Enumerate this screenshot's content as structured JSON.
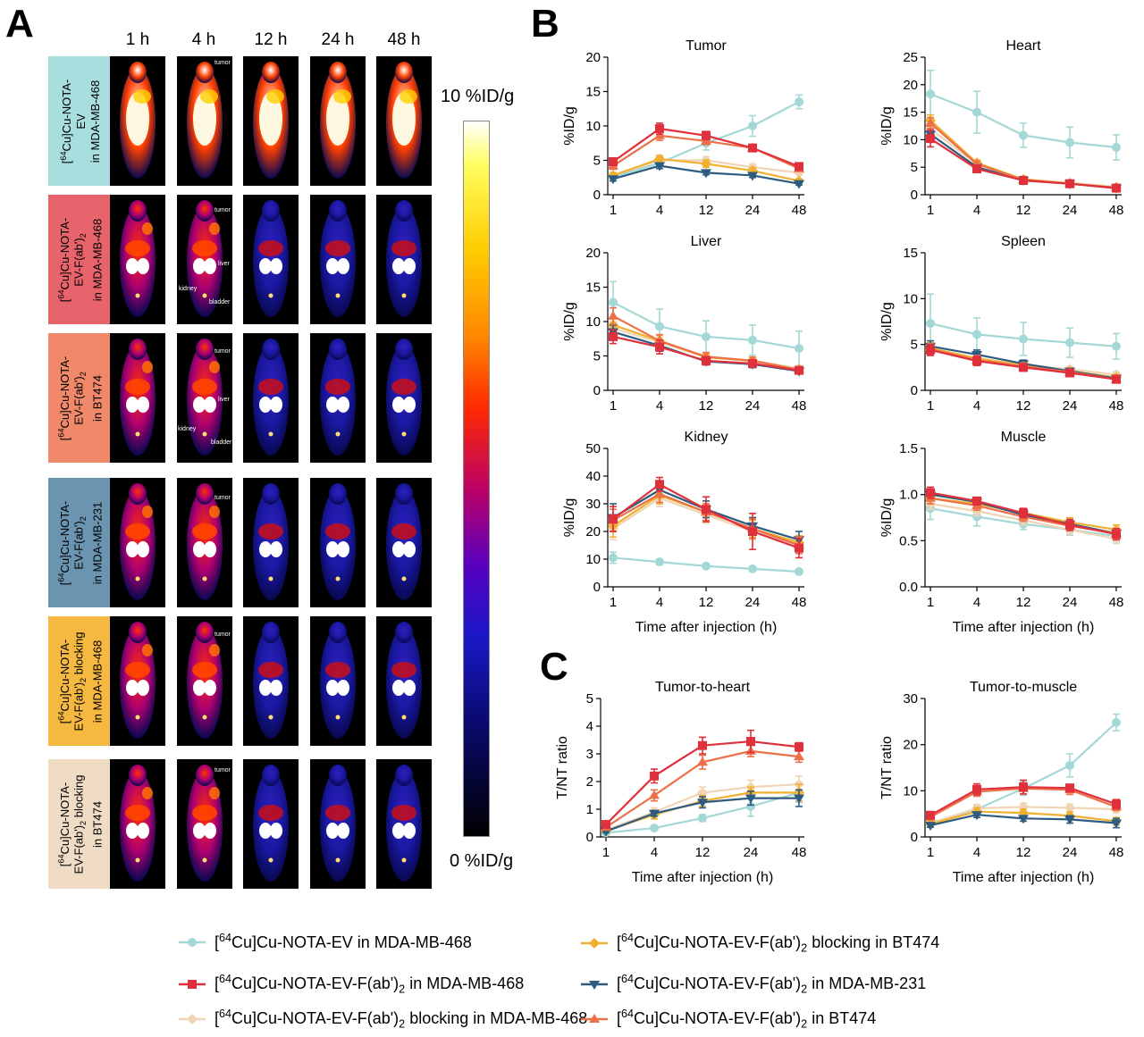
{
  "panels": {
    "a": "A",
    "b": "B",
    "c": "C"
  },
  "time_headers": [
    "1 h",
    "4 h",
    "12 h",
    "24 h",
    "48 h"
  ],
  "rows": [
    {
      "lines": [
        "[64Cu]Cu-NOTA-",
        "EV",
        "in MDA-MB-468"
      ],
      "color": "#a8dede"
    },
    {
      "lines": [
        "[64Cu]Cu-NOTA-",
        "EV-F(ab')2",
        "in MDA-MB-468"
      ],
      "color": "#e8646c"
    },
    {
      "lines": [
        "[64Cu]Cu-NOTA-",
        "EV-F(ab')2",
        "in BT474"
      ],
      "color": "#f0886a"
    },
    {
      "lines": [
        "[64Cu]Cu-NOTA-",
        "EV-F(ab')2",
        "in MDA-MB-231"
      ],
      "color": "#6a94b0"
    },
    {
      "lines": [
        "[64Cu]Cu-NOTA-",
        "EV-F(ab')2 blocking",
        "in MDA-MB-468"
      ],
      "color": "#f5b840"
    },
    {
      "lines": [
        "[64Cu]Cu-NOTA-",
        "EV-F(ab')2 blocking",
        "in BT474"
      ],
      "color": "#f0dcc4"
    }
  ],
  "annotations": {
    "tumor": "tumor",
    "liver": "liver",
    "kidney": "kidney",
    "bladder": "bladder"
  },
  "colorbar": {
    "max_label": "10 %ID/g",
    "min_label": "0 %ID/g"
  },
  "series_colors": {
    "ev": "#a4d8d6",
    "fab_468": "#e0303c",
    "block_468": "#f0d4b4",
    "block_474": "#f0b030",
    "fab_231": "#2e5c80",
    "fab_474": "#ec7048"
  },
  "legend": [
    {
      "key": "ev",
      "marker": "circle",
      "text": "[64Cu]Cu-NOTA-EV in MDA-MB-468"
    },
    {
      "key": "block_474",
      "marker": "diamond",
      "text": "[64Cu]Cu-NOTA-EV-F(ab')2 blocking in BT474"
    },
    {
      "key": "fab_468",
      "marker": "square",
      "text": "[64Cu]Cu-NOTA-EV-F(ab')2 in MDA-MB-468"
    },
    {
      "key": "fab_231",
      "marker": "tri-down",
      "text": "[64Cu]Cu-NOTA-EV-F(ab')2 in MDA-MB-231"
    },
    {
      "key": "block_468",
      "marker": "diamond",
      "text": "[64Cu]Cu-NOTA-EV-F(ab')2 blocking in MDA-MB-468"
    },
    {
      "key": "fab_474",
      "marker": "tri-up",
      "text": "[64Cu]Cu-NOTA-EV-F(ab')2 in BT474"
    }
  ],
  "chart_data": [
    {
      "type": "line",
      "title": "Tumor",
      "xlabel": "",
      "ylabel": "%ID/g",
      "ylim": [
        0,
        20
      ],
      "yticks": [
        "0",
        "5",
        "10",
        "15",
        "20"
      ],
      "categories": [
        "1",
        "4",
        "12",
        "24",
        "48"
      ],
      "series": [
        {
          "key": "ev",
          "values": [
            2.6,
            4.6,
            7.5,
            10.0,
            13.5
          ],
          "err": [
            0.5,
            0.5,
            1.0,
            1.5,
            1.0
          ]
        },
        {
          "key": "block_468",
          "values": [
            2.8,
            5.0,
            5.0,
            4.0,
            3.2
          ],
          "err": [
            0.4,
            0.5,
            0.5,
            0.4,
            0.3
          ]
        },
        {
          "key": "block_474",
          "values": [
            2.8,
            5.2,
            4.5,
            3.5,
            2.0
          ],
          "err": [
            0.4,
            0.5,
            0.5,
            0.4,
            0.3
          ]
        },
        {
          "key": "fab_231",
          "values": [
            2.3,
            4.2,
            3.2,
            2.8,
            1.6
          ],
          "err": [
            0.3,
            0.4,
            0.3,
            0.3,
            0.2
          ]
        },
        {
          "key": "fab_474",
          "values": [
            4.2,
            8.6,
            7.8,
            6.8,
            3.8
          ],
          "err": [
            0.5,
            0.7,
            0.5,
            0.5,
            0.4
          ]
        },
        {
          "key": "fab_468",
          "values": [
            4.8,
            9.6,
            8.6,
            6.8,
            4.1
          ],
          "err": [
            0.5,
            0.8,
            0.6,
            0.5,
            0.4
          ]
        }
      ]
    },
    {
      "type": "line",
      "title": "Heart",
      "xlabel": "",
      "ylabel": "%ID/g",
      "ylim": [
        0,
        25
      ],
      "yticks": [
        "0",
        "5",
        "10",
        "15",
        "20",
        "25"
      ],
      "categories": [
        "1",
        "4",
        "12",
        "24",
        "48"
      ],
      "series": [
        {
          "key": "ev",
          "values": [
            18.3,
            15.0,
            10.8,
            9.5,
            8.6
          ],
          "err": [
            4.3,
            3.8,
            2.2,
            2.8,
            2.3
          ]
        },
        {
          "key": "block_468",
          "values": [
            12.0,
            5.5,
            2.8,
            2.2,
            1.4
          ],
          "err": [
            1.0,
            0.5,
            0.3,
            0.3,
            0.2
          ]
        },
        {
          "key": "block_474",
          "values": [
            13.5,
            5.8,
            2.8,
            2.0,
            1.3
          ],
          "err": [
            1.0,
            0.5,
            0.3,
            0.3,
            0.2
          ]
        },
        {
          "key": "fab_231",
          "values": [
            11.0,
            5.0,
            2.6,
            2.0,
            1.2
          ],
          "err": [
            1.0,
            0.5,
            0.3,
            0.3,
            0.2
          ]
        },
        {
          "key": "fab_474",
          "values": [
            13.0,
            5.6,
            2.7,
            2.0,
            1.3
          ],
          "err": [
            1.0,
            0.5,
            0.3,
            0.3,
            0.2
          ]
        },
        {
          "key": "fab_468",
          "values": [
            10.2,
            4.7,
            2.6,
            2.0,
            1.2
          ],
          "err": [
            1.5,
            0.6,
            0.3,
            0.3,
            0.2
          ]
        }
      ]
    },
    {
      "type": "line",
      "title": "Liver",
      "xlabel": "",
      "ylabel": "%ID/g",
      "ylim": [
        0,
        20
      ],
      "yticks": [
        "0",
        "5",
        "10",
        "15",
        "20"
      ],
      "categories": [
        "1",
        "4",
        "12",
        "24",
        "48"
      ],
      "series": [
        {
          "key": "ev",
          "values": [
            12.8,
            9.3,
            7.8,
            7.3,
            6.1
          ],
          "err": [
            3.0,
            2.5,
            2.3,
            2.2,
            2.5
          ]
        },
        {
          "key": "block_468",
          "values": [
            9.0,
            7.0,
            4.8,
            4.3,
            3.2
          ],
          "err": [
            1.0,
            0.8,
            0.5,
            0.5,
            0.4
          ]
        },
        {
          "key": "block_474",
          "values": [
            9.5,
            7.2,
            4.8,
            4.3,
            3.0
          ],
          "err": [
            1.0,
            0.8,
            0.5,
            0.5,
            0.4
          ]
        },
        {
          "key": "fab_231",
          "values": [
            8.5,
            6.5,
            4.2,
            3.8,
            2.8
          ],
          "err": [
            1.0,
            0.8,
            0.5,
            0.5,
            0.4
          ]
        },
        {
          "key": "fab_474",
          "values": [
            10.8,
            7.2,
            4.9,
            4.3,
            3.0
          ],
          "err": [
            1.2,
            0.9,
            0.6,
            0.5,
            0.4
          ]
        },
        {
          "key": "fab_468",
          "values": [
            7.8,
            6.3,
            4.3,
            3.9,
            2.9
          ],
          "err": [
            1.0,
            1.0,
            0.6,
            0.5,
            0.4
          ]
        }
      ]
    },
    {
      "type": "line",
      "title": "Spleen",
      "xlabel": "",
      "ylabel": "%ID/g",
      "ylim": [
        0,
        15
      ],
      "yticks": [
        "0",
        "5",
        "10",
        "15"
      ],
      "categories": [
        "1",
        "4",
        "12",
        "24",
        "48"
      ],
      "series": [
        {
          "key": "ev",
          "values": [
            7.3,
            6.1,
            5.6,
            5.2,
            4.8
          ],
          "err": [
            3.2,
            1.8,
            1.8,
            1.6,
            1.4
          ]
        },
        {
          "key": "block_468",
          "values": [
            4.4,
            3.5,
            2.8,
            2.3,
            1.7
          ],
          "err": [
            0.6,
            0.5,
            0.4,
            0.3,
            0.3
          ]
        },
        {
          "key": "block_474",
          "values": [
            4.6,
            3.5,
            2.7,
            2.1,
            1.4
          ],
          "err": [
            0.6,
            0.5,
            0.4,
            0.3,
            0.3
          ]
        },
        {
          "key": "fab_231",
          "values": [
            4.8,
            3.9,
            2.9,
            2.1,
            1.3
          ],
          "err": [
            0.6,
            0.5,
            0.4,
            0.3,
            0.3
          ]
        },
        {
          "key": "fab_474",
          "values": [
            4.5,
            3.3,
            2.6,
            2.0,
            1.2
          ],
          "err": [
            0.6,
            0.5,
            0.4,
            0.3,
            0.3
          ]
        },
        {
          "key": "fab_468",
          "values": [
            4.4,
            3.2,
            2.5,
            1.9,
            1.2
          ],
          "err": [
            0.6,
            0.5,
            0.4,
            0.3,
            0.3
          ]
        }
      ]
    },
    {
      "type": "line",
      "title": "Kidney",
      "xlabel": "Time after injection (h)",
      "ylabel": "%ID/g",
      "ylim": [
        0,
        50
      ],
      "yticks": [
        "0",
        "10",
        "20",
        "30",
        "40",
        "50"
      ],
      "categories": [
        "1",
        "4",
        "12",
        "24",
        "48"
      ],
      "series": [
        {
          "key": "ev",
          "values": [
            10.5,
            9.0,
            7.5,
            6.5,
            5.5
          ],
          "err": [
            2.0,
            1.0,
            0.8,
            0.5,
            0.5
          ]
        },
        {
          "key": "block_468",
          "values": [
            21.0,
            32.0,
            26.0,
            20.0,
            15.0
          ],
          "err": [
            4.0,
            3.0,
            3.0,
            3.0,
            2.5
          ]
        },
        {
          "key": "block_474",
          "values": [
            22.0,
            33.0,
            27.0,
            21.0,
            16.0
          ],
          "err": [
            4.0,
            3.0,
            3.0,
            3.0,
            2.5
          ]
        },
        {
          "key": "fab_231",
          "values": [
            25.0,
            35.0,
            28.0,
            22.0,
            17.0
          ],
          "err": [
            5.0,
            2.5,
            3.0,
            3.0,
            3.0
          ]
        },
        {
          "key": "fab_474",
          "values": [
            24.0,
            33.5,
            27.0,
            21.0,
            15.0
          ],
          "err": [
            4.0,
            3.0,
            3.0,
            3.5,
            3.0
          ]
        },
        {
          "key": "fab_468",
          "values": [
            24.5,
            37.0,
            28.0,
            20.0,
            14.0
          ],
          "err": [
            4.5,
            2.5,
            4.5,
            6.5,
            3.5
          ]
        }
      ]
    },
    {
      "type": "line",
      "title": "Muscle",
      "xlabel": "Time after injection (h)",
      "ylabel": "%ID/g",
      "ylim": [
        0,
        1.5
      ],
      "yticks": [
        "0.0",
        "0.5",
        "1.0",
        "1.5"
      ],
      "categories": [
        "1",
        "4",
        "12",
        "24",
        "48"
      ],
      "series": [
        {
          "key": "ev",
          "values": [
            0.85,
            0.76,
            0.68,
            0.62,
            0.55
          ],
          "err": [
            0.12,
            0.1,
            0.06,
            0.06,
            0.06
          ]
        },
        {
          "key": "block_468",
          "values": [
            0.9,
            0.82,
            0.72,
            0.62,
            0.52
          ],
          "err": [
            0.06,
            0.05,
            0.05,
            0.05,
            0.05
          ]
        },
        {
          "key": "block_474",
          "values": [
            0.96,
            0.9,
            0.8,
            0.7,
            0.62
          ],
          "err": [
            0.06,
            0.05,
            0.05,
            0.05,
            0.05
          ]
        },
        {
          "key": "fab_231",
          "values": [
            1.0,
            0.92,
            0.78,
            0.68,
            0.58
          ],
          "err": [
            0.06,
            0.05,
            0.05,
            0.05,
            0.05
          ]
        },
        {
          "key": "fab_474",
          "values": [
            0.96,
            0.88,
            0.76,
            0.66,
            0.58
          ],
          "err": [
            0.06,
            0.05,
            0.05,
            0.05,
            0.05
          ]
        },
        {
          "key": "fab_468",
          "values": [
            1.02,
            0.93,
            0.8,
            0.67,
            0.57
          ],
          "err": [
            0.06,
            0.04,
            0.05,
            0.06,
            0.06
          ]
        }
      ]
    },
    {
      "type": "line",
      "title": "Tumor-to-heart",
      "xlabel": "Time after injection (h)",
      "ylabel": "T/NT ratio",
      "ylim": [
        0,
        5
      ],
      "yticks": [
        "0",
        "1",
        "2",
        "3",
        "4",
        "5"
      ],
      "categories": [
        "1",
        "4",
        "12",
        "24",
        "48"
      ],
      "series": [
        {
          "key": "ev",
          "values": [
            0.15,
            0.32,
            0.68,
            1.1,
            1.6
          ],
          "err": [
            0.04,
            0.05,
            0.12,
            0.35,
            0.35
          ]
        },
        {
          "key": "block_468",
          "values": [
            0.25,
            0.9,
            1.6,
            1.8,
            1.9
          ],
          "err": [
            0.05,
            0.15,
            0.2,
            0.25,
            0.3
          ]
        },
        {
          "key": "block_474",
          "values": [
            0.22,
            0.8,
            1.3,
            1.6,
            1.6
          ],
          "err": [
            0.05,
            0.15,
            0.2,
            0.2,
            0.3
          ]
        },
        {
          "key": "fab_231",
          "values": [
            0.2,
            0.85,
            1.25,
            1.4,
            1.4
          ],
          "err": [
            0.05,
            0.1,
            0.2,
            0.25,
            0.3
          ]
        },
        {
          "key": "fab_474",
          "values": [
            0.35,
            1.5,
            2.7,
            3.1,
            2.9
          ],
          "err": [
            0.08,
            0.2,
            0.25,
            0.2,
            0.2
          ]
        },
        {
          "key": "fab_468",
          "values": [
            0.45,
            2.2,
            3.3,
            3.45,
            3.25
          ],
          "err": [
            0.1,
            0.25,
            0.3,
            0.4,
            0.15
          ]
        }
      ]
    },
    {
      "type": "line",
      "title": "Tumor-to-muscle",
      "xlabel": "Time after injection (h)",
      "ylabel": "T/NT ratio",
      "ylim": [
        0,
        30
      ],
      "yticks": [
        "0",
        "10",
        "20",
        "30"
      ],
      "categories": [
        "1",
        "4",
        "12",
        "24",
        "48"
      ],
      "series": [
        {
          "key": "ev",
          "values": [
            3.0,
            6.0,
            10.5,
            15.5,
            24.8
          ],
          "err": [
            0.5,
            0.8,
            1.5,
            2.5,
            1.8
          ]
        },
        {
          "key": "block_468",
          "values": [
            3.0,
            6.2,
            6.5,
            6.3,
            6.0
          ],
          "err": [
            0.5,
            0.8,
            0.8,
            0.8,
            0.8
          ]
        },
        {
          "key": "block_474",
          "values": [
            2.8,
            5.5,
            5.2,
            4.6,
            3.4
          ],
          "err": [
            0.5,
            0.8,
            0.8,
            0.8,
            0.8
          ]
        },
        {
          "key": "fab_231",
          "values": [
            2.5,
            4.8,
            4.0,
            3.8,
            3.0
          ],
          "err": [
            0.4,
            0.6,
            0.6,
            0.8,
            1.0
          ]
        },
        {
          "key": "fab_474",
          "values": [
            4.3,
            9.8,
            10.5,
            10.2,
            6.5
          ],
          "err": [
            0.6,
            1.0,
            1.2,
            1.0,
            0.8
          ]
        },
        {
          "key": "fab_468",
          "values": [
            4.7,
            10.3,
            10.8,
            10.6,
            7.1
          ],
          "err": [
            0.6,
            1.2,
            1.5,
            0.8,
            1.0
          ]
        }
      ]
    }
  ]
}
